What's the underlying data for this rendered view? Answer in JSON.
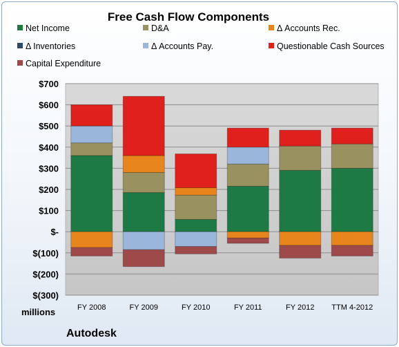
{
  "chart_data": {
    "type": "bar",
    "stacked": true,
    "title": "Free Cash Flow Components",
    "units_label": "millions",
    "company": "Autodesk",
    "categories": [
      "FY 2008",
      "FY 2009",
      "FY 2010",
      "FY 2011",
      "FY 2012",
      "TTM 4-2012"
    ],
    "ylim": [
      -300,
      700
    ],
    "yticks": [
      {
        "value": 700,
        "label": "$700"
      },
      {
        "value": 600,
        "label": "$600"
      },
      {
        "value": 500,
        "label": "$500"
      },
      {
        "value": 400,
        "label": "$400"
      },
      {
        "value": 300,
        "label": "$300"
      },
      {
        "value": 200,
        "label": "$200"
      },
      {
        "value": 100,
        "label": "$100"
      },
      {
        "value": 0,
        "label": "$-"
      },
      {
        "value": -100,
        "label": "$(100)"
      },
      {
        "value": -200,
        "label": "$(200)"
      },
      {
        "value": -300,
        "label": "$(300)"
      }
    ],
    "grid": true,
    "legend_position": "top",
    "series": [
      {
        "name": "Net Income",
        "color": "#1e7a44",
        "values": [
          360,
          185,
          58,
          215,
          290,
          300
        ]
      },
      {
        "name": "D&A",
        "color": "#9a9160",
        "values": [
          60,
          95,
          115,
          105,
          115,
          115
        ]
      },
      {
        "name": "Δ Accounts Rec.",
        "color": "#e8841c",
        "values": [
          -75,
          80,
          35,
          -30,
          -65,
          -65
        ]
      },
      {
        "name": "Δ Inventories",
        "color": "#2e4a66",
        "values": [
          0,
          0,
          0,
          0,
          0,
          0
        ]
      },
      {
        "name": "Δ Accounts Pay.",
        "color": "#9ab7db",
        "values": [
          80,
          -85,
          -70,
          80,
          0,
          0
        ]
      },
      {
        "name": "Questionable Cash Sources",
        "color": "#e0201c",
        "values": [
          100,
          280,
          160,
          90,
          75,
          75
        ]
      },
      {
        "name": "Capital Expenditure",
        "color": "#9e4a4a",
        "values": [
          -40,
          -80,
          -35,
          -25,
          -60,
          -50
        ]
      }
    ]
  }
}
